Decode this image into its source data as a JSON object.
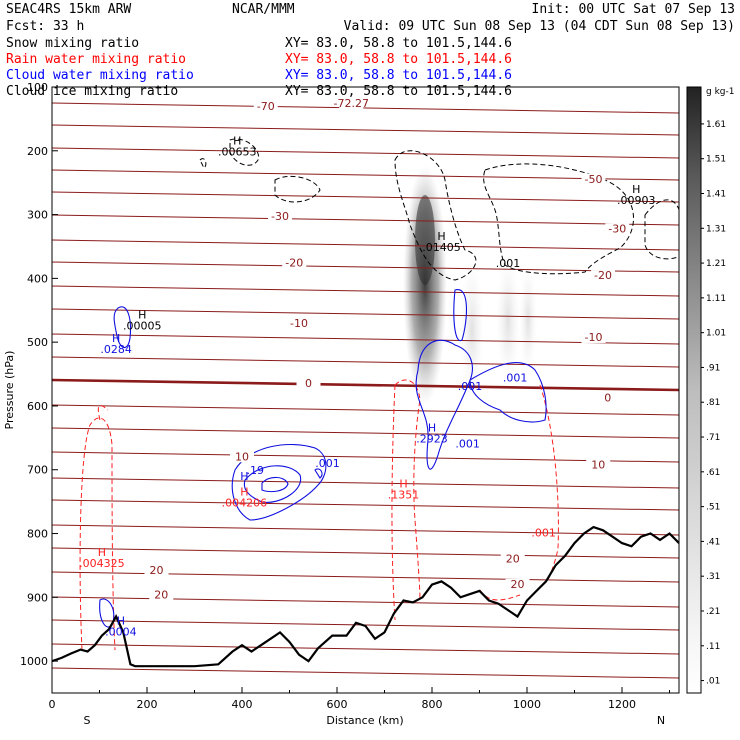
{
  "header": {
    "left_line1": "SEAC4RS 15km ARW",
    "center_line1": "NCAR/MMM",
    "right_line1": "Init: 00 UTC Sat 07 Sep 13",
    "left_line2": "Fcst:   33 h",
    "right_line2": "Valid: 09 UTC Sun 08 Sep 13 (04 CDT Sun 08 Sep 13)"
  },
  "legend": [
    {
      "label": "Snow mixing ratio",
      "xy": "XY=  83.0, 58.8 to 101.5,144.6",
      "color": "#000000"
    },
    {
      "label": "Rain water mixing ratio",
      "xy": "XY=  83.0, 58.8 to 101.5,144.6",
      "color": "#ff0000"
    },
    {
      "label": "Cloud water mixing ratio",
      "xy": "XY=  83.0, 58.8 to 101.5,144.6",
      "color": "#0000ff"
    },
    {
      "label": "Cloud ice mixing ratio",
      "xy": "XY=  83.0, 58.8 to 101.5,144.6",
      "color": "#000000"
    }
  ],
  "colors": {
    "temperature": "#8b1a1a",
    "rain": "#ff2020",
    "cloud_water": "#1010e0",
    "terrain": "#000000"
  },
  "chart_data": {
    "type": "contour",
    "xlabel": "Distance (km)",
    "ylabel": "Pressure (hPa)",
    "xlim": [
      0,
      1320
    ],
    "ylim": [
      1050,
      100
    ],
    "x_ticks": [
      0,
      200,
      400,
      600,
      800,
      1000,
      1200
    ],
    "y_ticks": [
      100,
      200,
      300,
      400,
      500,
      600,
      700,
      800,
      900,
      1000
    ],
    "x_endpoint_labels": {
      "left": "S",
      "right": "N"
    },
    "temperature_contour_labels": [
      {
        "value": "-70",
        "x": 450,
        "p": 133
      },
      {
        "value": "-72.27",
        "x": 630,
        "p": 128
      },
      {
        "value": "-50",
        "x": 1140,
        "p": 247
      },
      {
        "value": "-30",
        "x": 480,
        "p": 305
      },
      {
        "value": "-30",
        "x": 1190,
        "p": 325
      },
      {
        "value": "-20",
        "x": 510,
        "p": 378
      },
      {
        "value": "-20",
        "x": 1160,
        "p": 398
      },
      {
        "value": "-10",
        "x": 520,
        "p": 473
      },
      {
        "value": "-10",
        "x": 1140,
        "p": 495
      },
      {
        "value": "0",
        "x": 540,
        "p": 567
      },
      {
        "value": "0",
        "x": 1170,
        "p": 590
      },
      {
        "value": "10",
        "x": 400,
        "p": 682
      },
      {
        "value": "10",
        "x": 1150,
        "p": 695
      },
      {
        "value": "20",
        "x": 220,
        "p": 860
      },
      {
        "value": "20",
        "x": 970,
        "p": 842
      },
      {
        "value": "20",
        "x": 230,
        "p": 899
      },
      {
        "value": "20",
        "x": 980,
        "p": 882
      }
    ],
    "extrema_labels": [
      {
        "series": "snow",
        "mark": "H",
        "value": ".00653",
        "x": 390,
        "p": 190
      },
      {
        "series": "snow",
        "mark": "H",
        "value": ".00903",
        "x": 1230,
        "p": 266
      },
      {
        "series": "snow",
        "mark": "H",
        "value": ".01405",
        "x": 820,
        "p": 340
      },
      {
        "series": "snow",
        "mark": "H",
        "value": ".00005",
        "x": 190,
        "p": 463
      },
      {
        "series": "snow",
        "mark": "",
        "value": ".001",
        "x": 960,
        "p": 382
      },
      {
        "series": "cloud_water",
        "mark": "H",
        "value": ".0284",
        "x": 135,
        "p": 500
      },
      {
        "series": "cloud_water",
        "mark": "H",
        "value": ".2923",
        "x": 800,
        "p": 640
      },
      {
        "series": "cloud_water",
        "mark": "",
        "value": ".001",
        "x": 880,
        "p": 575
      },
      {
        "series": "cloud_water",
        "mark": "",
        "value": ".001",
        "x": 975,
        "p": 562
      },
      {
        "series": "cloud_water",
        "mark": "",
        "value": ".001",
        "x": 875,
        "p": 665
      },
      {
        "series": "cloud_water",
        "mark": "",
        "value": ".001",
        "x": 580,
        "p": 696
      },
      {
        "series": "cloud_water",
        "mark": "H",
        "value": "",
        "x": 405,
        "p": 716
      },
      {
        "series": "cloud_water",
        "mark": "",
        "value": ".19",
        "x": 428,
        "p": 707
      },
      {
        "series": "cloud_water",
        "mark": "H",
        "value": ".0004",
        "x": 145,
        "p": 943
      },
      {
        "series": "rain",
        "mark": "H",
        "value": ".004206",
        "x": 405,
        "p": 740
      },
      {
        "series": "rain",
        "mark": "H",
        "value": ".004325",
        "x": 105,
        "p": 835
      },
      {
        "series": "rain",
        "mark": "H",
        "value": ".1351",
        "x": 740,
        "p": 728
      },
      {
        "series": "rain",
        "mark": "",
        "value": ".001",
        "x": 1035,
        "p": 805
      }
    ],
    "colorbar": {
      "unit": "g kg-1",
      "levels": [
        ".01",
        ".11",
        ".21",
        ".31",
        ".41",
        ".51",
        ".61",
        ".71",
        ".81",
        ".91",
        "1.01",
        "1.11",
        "1.21",
        "1.31",
        "1.41",
        "1.51",
        "1.61"
      ]
    },
    "terrain_profile": [
      [
        0,
        1000
      ],
      [
        20,
        995
      ],
      [
        40,
        988
      ],
      [
        60,
        982
      ],
      [
        75,
        985
      ],
      [
        90,
        975
      ],
      [
        105,
        960
      ],
      [
        120,
        950
      ],
      [
        135,
        930
      ],
      [
        150,
        955
      ],
      [
        165,
        1005
      ],
      [
        175,
        1008
      ],
      [
        200,
        1008
      ],
      [
        250,
        1008
      ],
      [
        300,
        1008
      ],
      [
        350,
        1005
      ],
      [
        380,
        985
      ],
      [
        400,
        975
      ],
      [
        420,
        985
      ],
      [
        440,
        975
      ],
      [
        460,
        965
      ],
      [
        480,
        955
      ],
      [
        500,
        970
      ],
      [
        520,
        990
      ],
      [
        540,
        1000
      ],
      [
        560,
        980
      ],
      [
        590,
        960
      ],
      [
        620,
        960
      ],
      [
        640,
        940
      ],
      [
        660,
        945
      ],
      [
        680,
        965
      ],
      [
        700,
        955
      ],
      [
        720,
        925
      ],
      [
        740,
        905
      ],
      [
        760,
        908
      ],
      [
        780,
        900
      ],
      [
        800,
        880
      ],
      [
        820,
        875
      ],
      [
        840,
        885
      ],
      [
        860,
        900
      ],
      [
        880,
        895
      ],
      [
        900,
        890
      ],
      [
        920,
        905
      ],
      [
        940,
        910
      ],
      [
        960,
        920
      ],
      [
        980,
        930
      ],
      [
        1000,
        905
      ],
      [
        1020,
        890
      ],
      [
        1040,
        875
      ],
      [
        1060,
        850
      ],
      [
        1080,
        835
      ],
      [
        1100,
        815
      ],
      [
        1120,
        800
      ],
      [
        1140,
        790
      ],
      [
        1160,
        795
      ],
      [
        1180,
        805
      ],
      [
        1200,
        815
      ],
      [
        1220,
        820
      ],
      [
        1240,
        805
      ],
      [
        1260,
        800
      ],
      [
        1280,
        810
      ],
      [
        1300,
        800
      ],
      [
        1320,
        815
      ]
    ]
  }
}
